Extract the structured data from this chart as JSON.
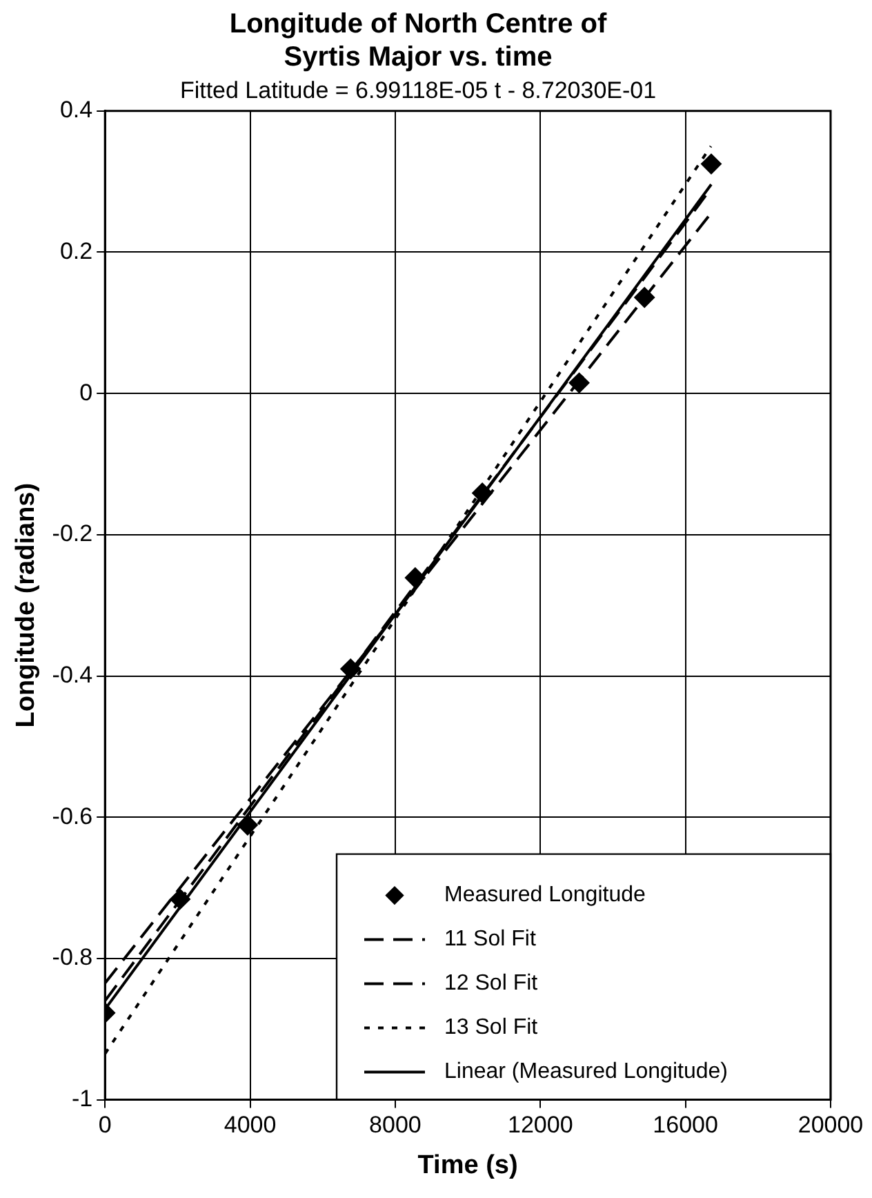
{
  "chart_data": {
    "type": "scatter",
    "title": "Longitude of North Centre of Syrtis Major vs. time",
    "subtitle": "Fitted Latitude = 6.99118E-05 t - 8.72030E-01",
    "xlabel": "Time (s)",
    "ylabel": "Longitude (radians)",
    "xlim": [
      0,
      20000
    ],
    "xticks": [
      0,
      4000,
      8000,
      12000,
      16000,
      20000
    ],
    "ylim": [
      -1,
      0.4
    ],
    "yticks": [
      -1,
      -0.8,
      -0.6,
      -0.4,
      -0.2,
      0,
      0.2,
      0.4
    ],
    "grid": true,
    "legend": "bottom right",
    "series": [
      {
        "name": "Measured Longitude",
        "color": "#000000",
        "marker": "diamond",
        "x": [
          0,
          2070,
          3930,
          6770,
          8550,
          10400,
          13070,
          14870,
          16710
        ],
        "values": [
          -0.877,
          -0.716,
          -0.611,
          -0.39,
          -0.261,
          -0.141,
          0.015,
          0.136,
          0.325
        ]
      },
      {
        "name": "11 Sol Fit",
        "type": "line",
        "color": "#000000",
        "line_style": "dashed",
        "marker": "none",
        "x": [
          0,
          16700
        ],
        "values": [
          -0.835,
          0.255
        ]
      },
      {
        "name": "12 Sol Fit",
        "type": "line",
        "color": "#000000",
        "line_style": "dashed",
        "marker": "none",
        "x": [
          0,
          16700
        ],
        "values": [
          -0.86,
          0.29
        ]
      },
      {
        "name": "13 Sol Fit",
        "type": "line",
        "color": "#000000",
        "line_style": "dotted",
        "marker": "none",
        "x": [
          0,
          16700
        ],
        "values": [
          -0.935,
          0.35
        ]
      },
      {
        "name": "Linear (Measured Longitude)",
        "type": "line",
        "color": "#000000",
        "line_style": "solid",
        "marker": "none",
        "x": [
          0,
          16710
        ],
        "values": [
          -0.872,
          0.296
        ]
      }
    ]
  }
}
